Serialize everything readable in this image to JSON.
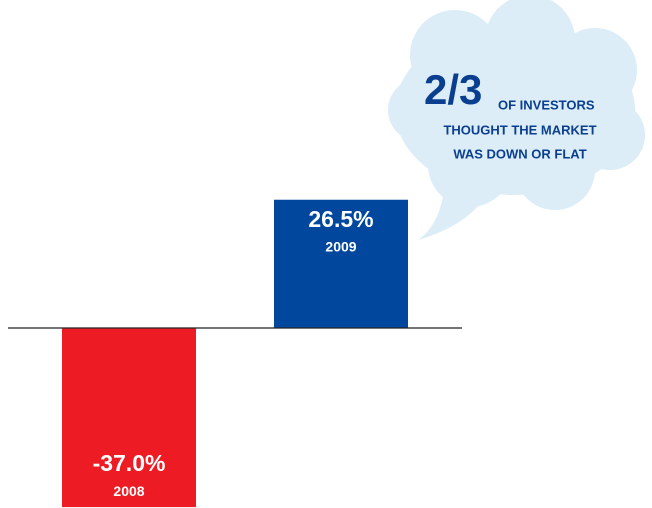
{
  "chart_data": {
    "type": "bar",
    "categories": [
      "2008",
      "2009"
    ],
    "values": [
      -37.0,
      26.5
    ],
    "value_labels": [
      "-37.0%",
      "26.5%"
    ],
    "colors": [
      "#ed1c24",
      "#00479d"
    ],
    "annotations": [
      "2/3",
      "OF INVESTORS",
      "THOUGHT THE MARKET",
      "WAS DOWN OR FLAT"
    ]
  }
}
